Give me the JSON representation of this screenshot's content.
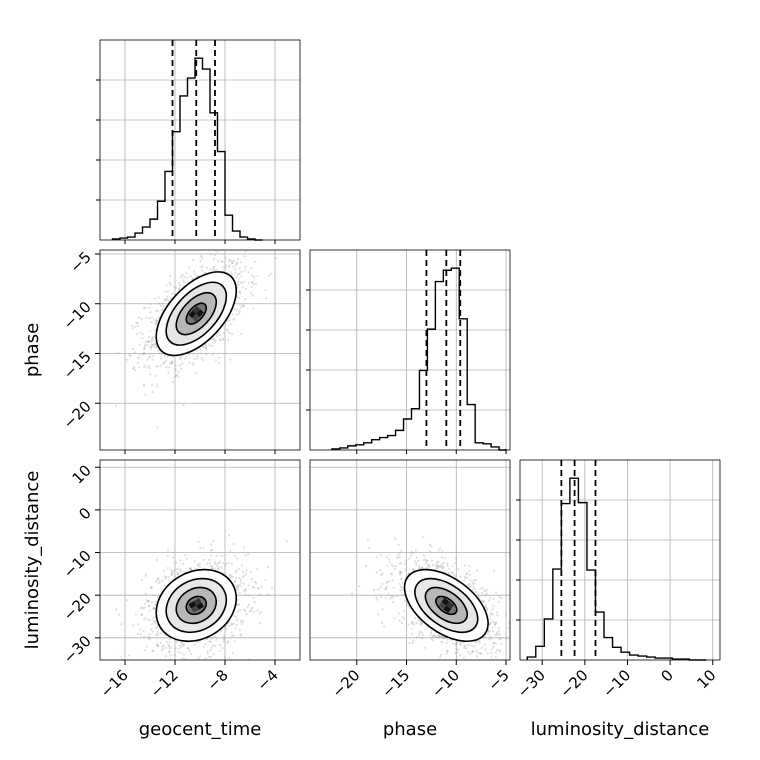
{
  "chart_data": {
    "type": "corner",
    "parameters": [
      {
        "name": "geocent_time",
        "label": "geocent_time",
        "range": [
          -18.0,
          -2.0
        ],
        "ticks": [
          -16,
          -12,
          -8,
          -4
        ],
        "tick_labels": [
          "−16",
          "−12",
          "−8",
          "−4"
        ],
        "quantiles": [
          -12.2,
          -10.3,
          -8.8
        ]
      },
      {
        "name": "phase",
        "label": "phase",
        "range": [
          -24.7,
          -4.6
        ],
        "ticks": [
          -20,
          -15,
          -10,
          -5
        ],
        "tick_labels": [
          "−20",
          "−15",
          "−10",
          "−5"
        ],
        "quantiles": [
          -13.0,
          -11.0,
          -9.6
        ]
      },
      {
        "name": "luminosity_distance",
        "label": "luminosity_distance",
        "range": [
          -35.2,
          11.7
        ],
        "ticks": [
          -30,
          -20,
          -10,
          0,
          10
        ],
        "tick_labels": [
          "−30",
          "−20",
          "−10",
          "0",
          "10"
        ],
        "quantiles": [
          -25.5,
          -22.4,
          -17.5
        ]
      }
    ],
    "histograms": [
      {
        "parameter": "geocent_time",
        "bin_edges": [
          -17.0,
          -16.4,
          -15.8,
          -15.2,
          -14.6,
          -14.0,
          -13.4,
          -12.8,
          -12.2,
          -11.6,
          -11.0,
          -10.4,
          -9.8,
          -9.2,
          -8.6,
          -8.0,
          -7.4,
          -6.8,
          -6.2,
          -5.6,
          -5.0
        ],
        "counts": [
          1,
          2,
          3,
          7,
          13,
          21,
          39,
          69,
          109,
          145,
          163,
          183,
          172,
          128,
          89,
          25,
          9,
          3,
          1,
          0
        ]
      },
      {
        "parameter": "phase",
        "bin_edges": [
          -22.5,
          -21.7,
          -20.9,
          -20.1,
          -19.3,
          -18.5,
          -17.7,
          -16.9,
          -16.1,
          -15.3,
          -14.5,
          -13.7,
          -12.9,
          -12.1,
          -11.3,
          -10.5,
          -9.7,
          -8.9,
          -8.1,
          -7.3,
          -6.5,
          -5.7,
          -4.9
        ],
        "counts": [
          1,
          2,
          4,
          5,
          7,
          10,
          12,
          14,
          19,
          30,
          40,
          77,
          117,
          163,
          174,
          176,
          127,
          44,
          7,
          6,
          3,
          0
        ]
      },
      {
        "parameter": "luminosity_distance",
        "bin_edges": [
          -33.5,
          -31.5,
          -29.5,
          -27.5,
          -25.5,
          -23.5,
          -21.5,
          -19.5,
          -17.5,
          -15.5,
          -13.5,
          -11.5,
          -9.5,
          -7.5,
          -5.5,
          -3.5,
          -1.5,
          0.5,
          2.5,
          4.5,
          6.5,
          8.5
        ],
        "counts": [
          3,
          14,
          42,
          93,
          160,
          186,
          161,
          92,
          49,
          23,
          13,
          8,
          5,
          4,
          3,
          2,
          2,
          1,
          1,
          0,
          0
        ]
      }
    ],
    "joint": [
      {
        "x": "geocent_time",
        "y": "phase",
        "center": [
          -10.3,
          -11.0
        ],
        "spread": [
          1.6,
          2.1
        ],
        "correlation": 0.55,
        "levels_sigma": [
          0.5,
          1.0,
          1.5,
          2.0
        ]
      },
      {
        "x": "geocent_time",
        "y": "luminosity_distance",
        "center": [
          -10.3,
          -22.4
        ],
        "spread": [
          1.6,
          4.2
        ],
        "correlation": 0.2,
        "levels_sigma": [
          0.5,
          1.0,
          1.5,
          2.0
        ]
      },
      {
        "x": "phase",
        "y": "luminosity_distance",
        "center": [
          -11.0,
          -22.4
        ],
        "spread": [
          2.1,
          4.2
        ],
        "correlation": -0.5,
        "levels_sigma": [
          0.5,
          1.0,
          1.5,
          2.0
        ]
      }
    ],
    "grid": true,
    "colors": {
      "scatter": "#8c8c8c",
      "contour": "#000000",
      "grid": "#b0b0b0",
      "axes": "#000000"
    }
  }
}
